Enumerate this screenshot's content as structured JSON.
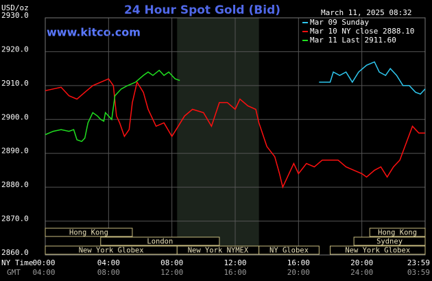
{
  "chart_data": {
    "type": "line",
    "title": "24 Hour Spot Gold (Bid)",
    "site": "www.kitco.com",
    "y_label": "USD/oz",
    "x_label": "NY Time",
    "x2_label": "GMT",
    "timestamp": "March 11, 2025 08:32",
    "ylim": [
      2860,
      2930
    ],
    "yticks": [
      {
        "value": 2930,
        "label": "2930.0"
      },
      {
        "value": 2920,
        "label": "2920.0"
      },
      {
        "value": 2910,
        "label": "2910.0"
      },
      {
        "value": 2900,
        "label": "2900.0"
      },
      {
        "value": 2890,
        "label": "2890.0"
      },
      {
        "value": 2880,
        "label": "2880.0"
      },
      {
        "value": 2870,
        "label": "2870.0"
      },
      {
        "value": 2860,
        "label": "2860.0"
      }
    ],
    "xlim": [
      0,
      24
    ],
    "xticks": [
      {
        "value": 0,
        "label": "00:00"
      },
      {
        "value": 4,
        "label": "04:00"
      },
      {
        "value": 8,
        "label": "08:00"
      },
      {
        "value": 12,
        "label": "12:00"
      },
      {
        "value": 16,
        "label": "16:00"
      },
      {
        "value": 20,
        "label": "20:00"
      },
      {
        "value": 23.98,
        "label": "23:59"
      }
    ],
    "x2ticklabels": [
      "04:00",
      "08:00",
      "12:00",
      "16:00",
      "20:00",
      "24:00",
      "03:59"
    ],
    "grid": true,
    "highlight": [
      8.33,
      13.5
    ],
    "series": [
      {
        "name": "Mar 09 Sunday",
        "color": "#2fc8f0",
        "x": [
          17.3,
          18,
          18.2,
          18.6,
          19,
          19.4,
          19.8,
          20.3,
          20.8,
          21.1,
          21.5,
          21.8,
          22.2,
          22.6,
          23,
          23.4,
          23.7,
          24
        ],
        "values": [
          2911,
          2911,
          2914,
          2913,
          2914,
          2911,
          2914,
          2916,
          2917,
          2914,
          2913,
          2915,
          2913,
          2910,
          2910,
          2908,
          2907.5,
          2909
        ]
      },
      {
        "name": "Mar 10 NY close 2888.10",
        "color": "#ff1010",
        "x": [
          0,
          0.5,
          1,
          1.5,
          2,
          2.5,
          3,
          3.5,
          4,
          4.3,
          4.5,
          4.7,
          5,
          5.3,
          5.5,
          5.8,
          6.2,
          6.5,
          7,
          7.5,
          8,
          8.4,
          8.8,
          9.3,
          10,
          10.5,
          11,
          11.5,
          12,
          12.3,
          12.8,
          13.3,
          13.5,
          14,
          14.5,
          14.8,
          15,
          15.3,
          15.7,
          16,
          16.5,
          17,
          17.5,
          18,
          18.5,
          19,
          19.5,
          20,
          20.3,
          20.8,
          21.2,
          21.6,
          22,
          22.4,
          22.8,
          23.2,
          23.6,
          24
        ],
        "values": [
          2908.5,
          2909,
          2909.5,
          2907,
          2906,
          2908,
          2910,
          2911,
          2912,
          2910,
          2901,
          2899,
          2895,
          2897,
          2905,
          2911,
          2908,
          2903,
          2898,
          2899,
          2895,
          2898,
          2901,
          2903,
          2902,
          2898,
          2905,
          2905,
          2903,
          2906,
          2904,
          2903,
          2899,
          2892,
          2889,
          2884,
          2880,
          2883,
          2887,
          2884,
          2887,
          2886,
          2888,
          2888,
          2888,
          2886,
          2885,
          2884,
          2883,
          2885,
          2886,
          2883,
          2886,
          2888,
          2893,
          2898,
          2896,
          2896
        ]
      },
      {
        "name": "Mar 11 Last 2911.60",
        "color": "#20e020",
        "x": [
          0,
          0.5,
          1,
          1.5,
          1.8,
          2,
          2.3,
          2.5,
          2.7,
          3,
          3.3,
          3.5,
          3.7,
          3.8,
          4.2,
          4.4,
          4.8,
          5.2,
          5.7,
          6.2,
          6.5,
          6.8,
          7.2,
          7.5,
          7.8,
          8.2,
          8.5
        ],
        "values": [
          2895.5,
          2896.5,
          2897,
          2896.5,
          2897,
          2894,
          2893.5,
          2894.5,
          2899,
          2902,
          2901,
          2900,
          2899.5,
          2902,
          2900,
          2907,
          2909,
          2910,
          2911,
          2913,
          2914,
          2913,
          2914.5,
          2913,
          2914,
          2912,
          2911.5
        ]
      }
    ],
    "sessions": [
      {
        "label": "Hong Kong",
        "row": 0,
        "start": 0,
        "end": 5.5
      },
      {
        "label": "Hong Kong",
        "row": 0,
        "start": 20.5,
        "end": 24
      },
      {
        "label": "London",
        "row": 1,
        "start": 3.5,
        "end": 11
      },
      {
        "label": "Sydney",
        "row": 1,
        "start": 19.5,
        "end": 24
      },
      {
        "label": "New York Globex",
        "row": 2,
        "start": 0,
        "end": 8.33
      },
      {
        "label": "New York NYMEX",
        "row": 2,
        "start": 8.33,
        "end": 13.5
      },
      {
        "label": "NY Globex",
        "row": 2,
        "start": 13.5,
        "end": 17.3
      },
      {
        "label": "New York Globex",
        "row": 2,
        "start": 18,
        "end": 24
      }
    ]
  }
}
